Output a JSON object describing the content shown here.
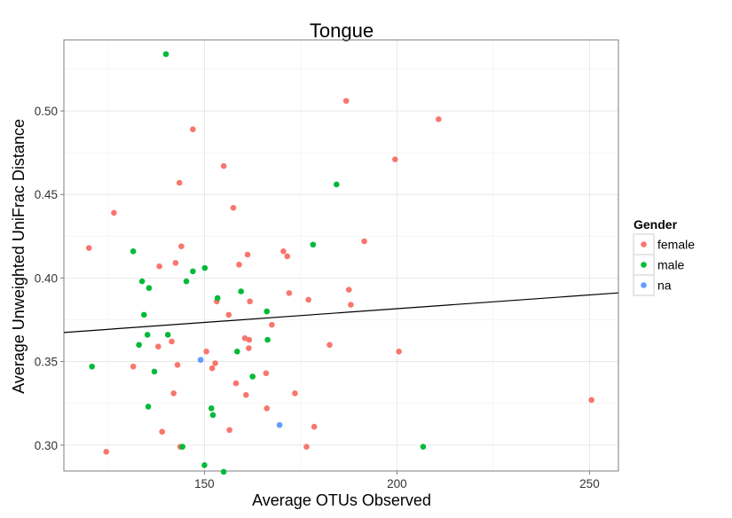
{
  "chart_data": {
    "type": "scatter",
    "title": "Tongue",
    "xlabel": "Average OTUs Observed",
    "ylabel": "Average Unweighted UniFrac Distance",
    "xlim": [
      113.5,
      257.5
    ],
    "ylim": [
      0.2845,
      0.5425
    ],
    "x_ticks": [
      150,
      200,
      250
    ],
    "y_ticks": [
      0.3,
      0.35,
      0.4,
      0.45,
      0.5
    ],
    "x_tick_labels": [
      "150",
      "200",
      "250"
    ],
    "y_tick_labels": [
      "0.30",
      "0.35",
      "0.40",
      "0.45",
      "0.50"
    ],
    "grid": true,
    "legend": {
      "title": "Gender",
      "position": "right"
    },
    "trend_line": {
      "x": [
        113.5,
        257.5
      ],
      "y": [
        0.3674,
        0.3911
      ]
    },
    "series": [
      {
        "name": "female",
        "color": "#F8766D",
        "points": [
          [
            120.0,
            0.418
          ],
          [
            124.5,
            0.296
          ],
          [
            126.5,
            0.439
          ],
          [
            131.5,
            0.347
          ],
          [
            138.0,
            0.359
          ],
          [
            138.3,
            0.407
          ],
          [
            139.0,
            0.308
          ],
          [
            141.5,
            0.362
          ],
          [
            142.0,
            0.331
          ],
          [
            142.5,
            0.409
          ],
          [
            143.0,
            0.348
          ],
          [
            143.5,
            0.457
          ],
          [
            143.7,
            0.299
          ],
          [
            144.0,
            0.419
          ],
          [
            147.0,
            0.489
          ],
          [
            150.5,
            0.356
          ],
          [
            152.0,
            0.346
          ],
          [
            152.8,
            0.349
          ],
          [
            153.2,
            0.386
          ],
          [
            155.0,
            0.467
          ],
          [
            156.3,
            0.378
          ],
          [
            156.5,
            0.309
          ],
          [
            157.5,
            0.442
          ],
          [
            158.2,
            0.337
          ],
          [
            159.0,
            0.408
          ],
          [
            160.5,
            0.364
          ],
          [
            160.8,
            0.33
          ],
          [
            161.2,
            0.414
          ],
          [
            161.5,
            0.358
          ],
          [
            161.6,
            0.363
          ],
          [
            161.8,
            0.386
          ],
          [
            166.0,
            0.343
          ],
          [
            166.2,
            0.322
          ],
          [
            167.5,
            0.372
          ],
          [
            170.5,
            0.416
          ],
          [
            171.5,
            0.413
          ],
          [
            172.0,
            0.391
          ],
          [
            173.5,
            0.331
          ],
          [
            176.5,
            0.299
          ],
          [
            177.0,
            0.387
          ],
          [
            178.5,
            0.311
          ],
          [
            182.5,
            0.36
          ],
          [
            186.8,
            0.506
          ],
          [
            187.5,
            0.393
          ],
          [
            188.0,
            0.384
          ],
          [
            191.5,
            0.422
          ],
          [
            199.5,
            0.471
          ],
          [
            200.5,
            0.356
          ],
          [
            210.8,
            0.495
          ],
          [
            250.5,
            0.327
          ]
        ]
      },
      {
        "name": "male",
        "color": "#00BA38",
        "points": [
          [
            120.8,
            0.347
          ],
          [
            131.5,
            0.416
          ],
          [
            133.0,
            0.36
          ],
          [
            133.8,
            0.398
          ],
          [
            134.3,
            0.378
          ],
          [
            135.2,
            0.366
          ],
          [
            135.4,
            0.323
          ],
          [
            135.6,
            0.394
          ],
          [
            137.0,
            0.344
          ],
          [
            140.0,
            0.534
          ],
          [
            140.5,
            0.366
          ],
          [
            144.3,
            0.299
          ],
          [
            145.3,
            0.398
          ],
          [
            147.0,
            0.404
          ],
          [
            150.0,
            0.288
          ],
          [
            150.1,
            0.406
          ],
          [
            151.8,
            0.322
          ],
          [
            152.2,
            0.318
          ],
          [
            153.4,
            0.388
          ],
          [
            155.0,
            0.284
          ],
          [
            158.5,
            0.356
          ],
          [
            159.5,
            0.392
          ],
          [
            162.5,
            0.341
          ],
          [
            166.2,
            0.38
          ],
          [
            166.4,
            0.363
          ],
          [
            178.2,
            0.42
          ],
          [
            184.3,
            0.456
          ],
          [
            206.8,
            0.299
          ]
        ]
      },
      {
        "name": "na",
        "color": "#619CFF",
        "points": [
          [
            149.0,
            0.351
          ],
          [
            169.5,
            0.312
          ]
        ]
      }
    ]
  }
}
